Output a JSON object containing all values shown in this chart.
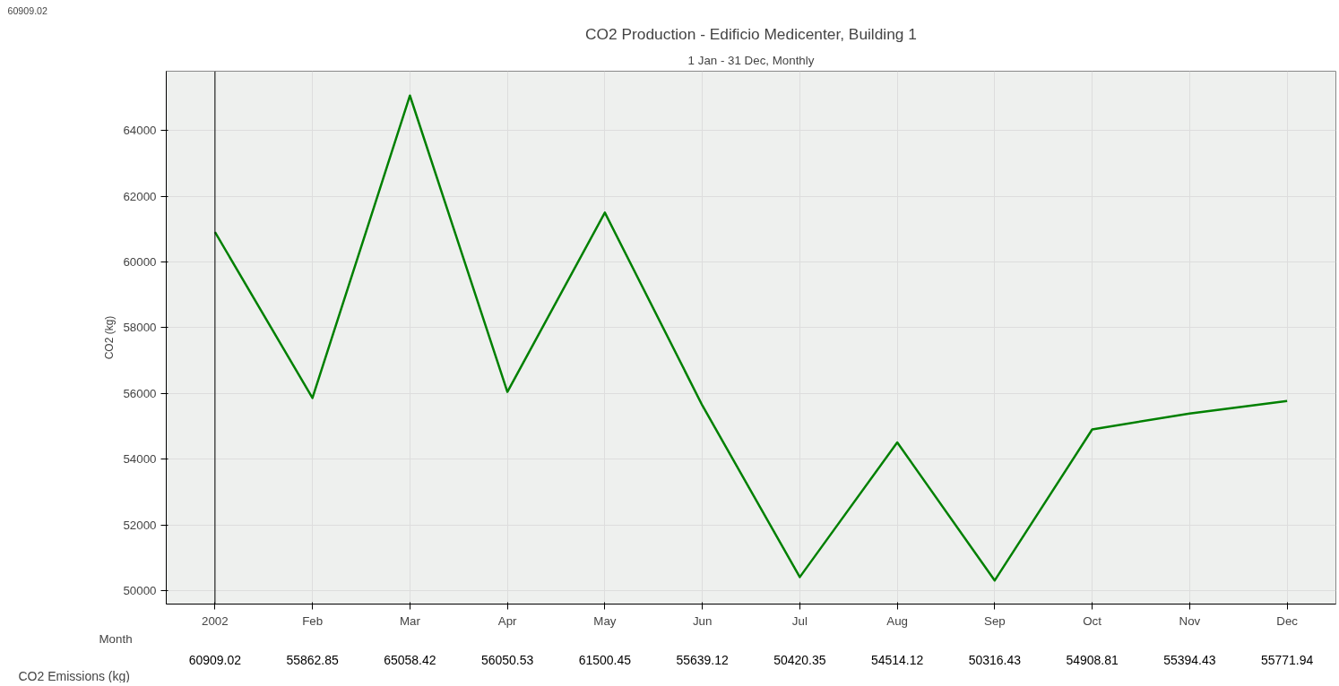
{
  "chart_data": {
    "type": "line",
    "title": "CO2 Production - Edificio Medicenter, Building 1",
    "subtitle": "1 Jan - 31 Dec, Monthly",
    "xlabel": "Month",
    "ylabel": "CO2 (kg)",
    "annotations": [
      "60909.02"
    ],
    "categories": [
      "2002",
      "Feb",
      "Mar",
      "Apr",
      "May",
      "Jun",
      "Jul",
      "Aug",
      "Sep",
      "Oct",
      "Nov",
      "Dec"
    ],
    "series": [
      {
        "name": "CO2 Emissions (kg)",
        "color": "#008000",
        "values": [
          60909.02,
          55862.85,
          65058.42,
          56050.53,
          61500.45,
          55639.12,
          50420.35,
          54514.12,
          50316.43,
          54908.81,
          55394.43,
          55771.94
        ]
      }
    ],
    "ylim": [
      49600,
      65800
    ],
    "yticks": [
      50000,
      52000,
      54000,
      56000,
      58000,
      60000,
      62000,
      64000
    ],
    "ref_lines": [
      {
        "axis": "x",
        "value": "2002",
        "color": "#000000"
      }
    ],
    "grid": true,
    "marker": "none",
    "line_style": "solid",
    "data_labels": true
  }
}
